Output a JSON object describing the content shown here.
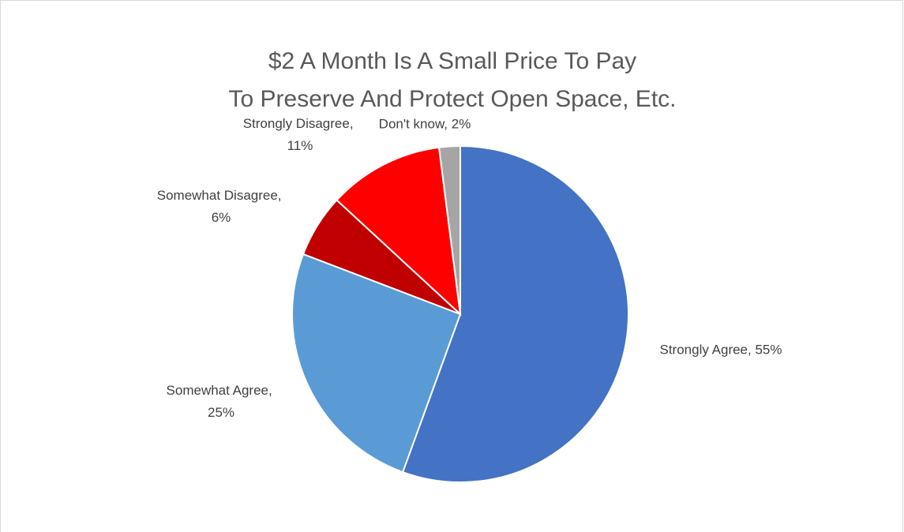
{
  "chart_data": {
    "type": "pie",
    "title": [
      "$2 A Month Is A Small Price To Pay",
      "To Preserve And Protect Open Space, Etc."
    ],
    "values": [
      55,
      25,
      6,
      11,
      2
    ],
    "value_labels": [
      "Strongly Agree, 55%",
      "Somewhat Agree, 25%",
      "Somewhat Disagree, 6%",
      "Strongly Disagree, 11%",
      "Don't know, 2%"
    ],
    "colors": [
      "#4472c4",
      "#5b9bd5",
      "#c00000",
      "#ff0000",
      "#a5a5a5"
    ]
  }
}
